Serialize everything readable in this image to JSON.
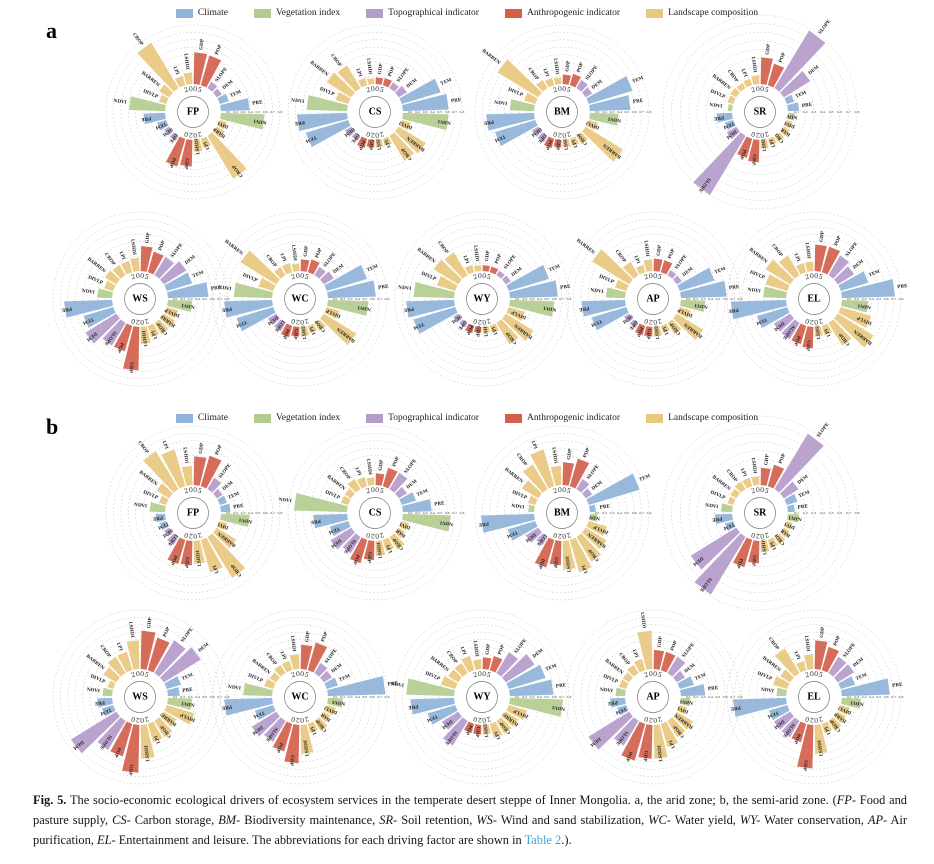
{
  "figure": {
    "panel_a_label": "a",
    "panel_b_label": "b",
    "year_top": "2005",
    "year_bottom": "2020"
  },
  "legend": {
    "items": [
      {
        "label": "Climate",
        "color": "#8fb3d9"
      },
      {
        "label": "Vegetation index",
        "color": "#b3cc90"
      },
      {
        "label": "Topographical indicator",
        "color": "#b49ccb"
      },
      {
        "label": "Anthropogenic indicator",
        "color": "#d2604c"
      },
      {
        "label": "Landscape composition",
        "color": "#e8c87e"
      }
    ]
  },
  "chart_data": {
    "type": "radial-bar",
    "drivers": [
      "PRE",
      "TEM",
      "DEM",
      "SLOPE",
      "POP",
      "GDP",
      "LSHDI",
      "LPI",
      "CROP",
      "BARREN",
      "DIVLP",
      "NDVI"
    ],
    "driver_category_index": [
      0,
      0,
      2,
      2,
      3,
      3,
      4,
      4,
      4,
      4,
      4,
      1
    ],
    "axis_ticks": [
      0.1,
      0.2,
      0.3,
      0.4,
      0.5,
      0.6,
      0.7,
      0.8
    ],
    "ring_max": 0.8,
    "series_labels": [
      "2005",
      "2020"
    ],
    "panels": [
      {
        "label": "a",
        "charts": [
          {
            "code": "FP",
            "v2005": [
              0.39,
              0.13,
              0.08,
              0.1,
              0.42,
              0.43,
              0.16,
              0.13,
              0.72,
              0.16,
              0.1,
              0.49
            ],
            "v2020": [
              0.29,
              0.13,
              0.08,
              0.08,
              0.39,
              0.36,
              0.16,
              0.13,
              0.68,
              0.13,
              0.1,
              0.59
            ]
          },
          {
            "code": "CS",
            "v2005": [
              0.62,
              0.55,
              0.13,
              0.09,
              0.1,
              0.09,
              0.08,
              0.1,
              0.36,
              0.39,
              0.18,
              0.55
            ],
            "v2020": [
              0.68,
              0.6,
              0.1,
              0.08,
              0.13,
              0.1,
              0.1,
              0.1,
              0.39,
              0.43,
              0.13,
              0.62
            ]
          },
          {
            "code": "BM",
            "v2005": [
              0.55,
              0.62,
              0.1,
              0.13,
              0.16,
              0.13,
              0.09,
              0.1,
              0.13,
              0.65,
              0.16,
              0.33
            ],
            "v2020": [
              0.65,
              0.57,
              0.1,
              0.1,
              0.13,
              0.1,
              0.1,
              0.1,
              0.13,
              0.59,
              0.13,
              0.39
            ]
          },
          {
            "code": "SR",
            "v2005": [
              0.13,
              0.09,
              0.36,
              0.78,
              0.26,
              0.31,
              0.1,
              0.08,
              0.07,
              0.08,
              0.07,
              0.05
            ],
            "v2020": [
              0.18,
              0.1,
              0.13,
              0.8,
              0.23,
              0.26,
              0.1,
              0.08,
              0.08,
              0.08,
              0.07,
              0.08
            ]
          },
          {
            "code": "WS",
            "v2005": [
              0.55,
              0.36,
              0.36,
              0.29,
              0.29,
              0.34,
              0.18,
              0.16,
              0.16,
              0.18,
              0.13,
              0.2
            ],
            "v2020": [
              0.65,
              0.42,
              0.49,
              0.36,
              0.36,
              0.59,
              0.23,
              0.16,
              0.18,
              0.18,
              0.16,
              0.33
            ]
          },
          {
            "code": "WC",
            "v2005": [
              0.65,
              0.57,
              0.16,
              0.13,
              0.18,
              0.16,
              0.1,
              0.13,
              0.13,
              0.57,
              0.21,
              0.52
            ],
            "v2020": [
              0.65,
              0.52,
              0.13,
              0.13,
              0.16,
              0.13,
              0.13,
              0.1,
              0.13,
              0.52,
              0.18,
              0.55
            ]
          },
          {
            "code": "WY",
            "v2005": [
              0.65,
              0.57,
              0.08,
              0.07,
              0.08,
              0.08,
              0.08,
              0.1,
              0.36,
              0.39,
              0.26,
              0.55
            ],
            "v2020": [
              0.65,
              0.59,
              0.08,
              0.07,
              0.1,
              0.08,
              0.08,
              0.1,
              0.34,
              0.44,
              0.23,
              0.6
            ]
          },
          {
            "code": "AP",
            "v2005": [
              0.62,
              0.49,
              0.08,
              0.08,
              0.17,
              0.17,
              0.16,
              0.1,
              0.21,
              0.59,
              0.16,
              0.26
            ],
            "v2020": [
              0.59,
              0.49,
              0.08,
              0.08,
              0.13,
              0.13,
              0.13,
              0.1,
              0.18,
              0.42,
              0.16,
              0.33
            ]
          },
          {
            "code": "EL",
            "v2005": [
              0.72,
              0.39,
              0.26,
              0.31,
              0.36,
              0.36,
              0.13,
              0.13,
              0.31,
              0.39,
              0.31,
              0.31
            ],
            "v2020": [
              0.75,
              0.43,
              0.26,
              0.26,
              0.26,
              0.29,
              0.13,
              0.13,
              0.36,
              0.57,
              0.43,
              0.36
            ]
          }
        ]
      },
      {
        "label": "b",
        "charts": [
          {
            "code": "FP",
            "v2005": [
              0.13,
              0.1,
              0.09,
              0.18,
              0.43,
              0.39,
              0.26,
              0.52,
              0.6,
              0.2,
              0.1,
              0.21
            ],
            "v2020": [
              0.13,
              0.09,
              0.08,
              0.13,
              0.34,
              0.33,
              0.31,
              0.46,
              0.65,
              0.31,
              0.1,
              0.39
            ]
          },
          {
            "code": "CS",
            "v2005": [
              0.39,
              0.2,
              0.13,
              0.26,
              0.26,
              0.16,
              0.1,
              0.13,
              0.16,
              0.1,
              0.1,
              0.72
            ],
            "v2020": [
              0.46,
              0.26,
              0.33,
              0.26,
              0.33,
              0.26,
              0.2,
              0.16,
              0.2,
              0.1,
              0.1,
              0.65
            ]
          },
          {
            "code": "BM",
            "v2005": [
              0.08,
              0.72,
              0.1,
              0.16,
              0.39,
              0.31,
              0.26,
              0.52,
              0.39,
              0.26,
              0.1,
              0.08
            ],
            "v2020": [
              0.72,
              0.39,
              0.2,
              0.13,
              0.39,
              0.33,
              0.39,
              0.46,
              0.39,
              0.33,
              0.26,
              0.1
            ]
          },
          {
            "code": "SR",
            "v2005": [
              0.08,
              0.13,
              0.2,
              0.75,
              0.26,
              0.2,
              0.1,
              0.1,
              0.1,
              0.08,
              0.07,
              0.13
            ],
            "v2020": [
              0.2,
              0.1,
              0.62,
              0.78,
              0.33,
              0.26,
              0.13,
              0.1,
              0.1,
              0.08,
              0.07,
              0.13
            ]
          },
          {
            "code": "WS",
            "v2005": [
              0.16,
              0.2,
              0.59,
              0.52,
              0.46,
              0.52,
              0.39,
              0.26,
              0.26,
              0.2,
              0.08,
              0.13
            ],
            "v2020": [
              0.2,
              0.16,
              0.72,
              0.46,
              0.46,
              0.65,
              0.46,
              0.26,
              0.26,
              0.2,
              0.39,
              0.33
            ]
          },
          {
            "code": "WC",
            "v2005": [
              0.78,
              0.16,
              0.13,
              0.16,
              0.39,
              0.33,
              0.2,
              0.13,
              0.13,
              0.1,
              0.13,
              0.39
            ],
            "v2020": [
              0.65,
              0.26,
              0.39,
              0.33,
              0.39,
              0.52,
              0.39,
              0.13,
              0.16,
              0.1,
              0.13,
              0.2
            ]
          },
          {
            "code": "WY",
            "v2005": [
              0.59,
              0.52,
              0.46,
              0.33,
              0.2,
              0.16,
              0.13,
              0.2,
              0.16,
              0.16,
              0.2,
              0.65
            ],
            "v2020": [
              0.59,
              0.39,
              0.26,
              0.39,
              0.13,
              0.13,
              0.13,
              0.2,
              0.2,
              0.2,
              0.26,
              0.72
            ]
          },
          {
            "code": "AP",
            "v2005": [
              0.33,
              0.2,
              0.13,
              0.26,
              0.26,
              0.26,
              0.52,
              0.16,
              0.13,
              0.1,
              0.1,
              0.13
            ],
            "v2020": [
              0.2,
              0.13,
              0.65,
              0.39,
              0.52,
              0.46,
              0.46,
              0.33,
              0.26,
              0.26,
              0.1,
              0.13
            ]
          },
          {
            "code": "EL",
            "v2005": [
              0.65,
              0.2,
              0.26,
              0.26,
              0.33,
              0.39,
              0.2,
              0.13,
              0.39,
              0.16,
              0.2,
              0.13
            ],
            "v2020": [
              0.72,
              0.26,
              0.26,
              0.26,
              0.26,
              0.59,
              0.39,
              0.13,
              0.16,
              0.13,
              0.13,
              0.26
            ]
          }
        ]
      }
    ]
  },
  "caption": {
    "fig_label": "Fig. 5.",
    "intro": " The socio-economic ecological drivers of ecosystem services in the temperate desert steppe of Inner Mongolia. a, the arid zone; b, the semi-arid zone. (",
    "services": [
      {
        "code": "FP-",
        "desc": " Food and pasture supply, "
      },
      {
        "code": "CS-",
        "desc": " Carbon storage, "
      },
      {
        "code": "BM-",
        "desc": " Biodiversity maintenance, "
      },
      {
        "code": "SR-",
        "desc": " Soil retention, "
      },
      {
        "code": "WS-",
        "desc": " Wind and sand stabilization, "
      },
      {
        "code": "WC-",
        "desc": " Water yield, "
      },
      {
        "code": "WY-",
        "desc": " Water conservation, "
      },
      {
        "code": "AP-",
        "desc": " Air purification, "
      },
      {
        "code": "EL-",
        "desc": " Entertainment and leisure. "
      }
    ],
    "outro": "The abbreviations for each driving factor are shown in ",
    "link_text": "Table 2",
    "closing": ".)."
  }
}
